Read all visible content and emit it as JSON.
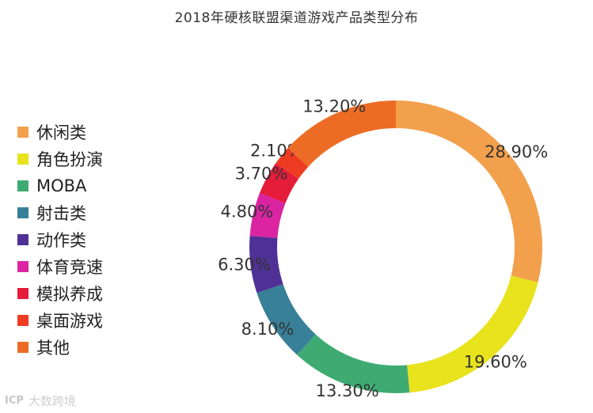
{
  "chart_data": {
    "type": "pie",
    "variant": "donut",
    "title": "2018年硬核联盟渠道游戏产品类型分布",
    "legend_position": "left",
    "slices": [
      {
        "name": "休闲类",
        "value": 28.9,
        "label": "28.90%",
        "color": "#f2a04c"
      },
      {
        "name": "角色扮演",
        "value": 19.6,
        "label": "19.60%",
        "color": "#e8e31c"
      },
      {
        "name": "MOBA",
        "value": 13.3,
        "label": "13.30%",
        "color": "#3fab73"
      },
      {
        "name": "射击类",
        "value": 8.1,
        "label": "8.10%",
        "color": "#387f98"
      },
      {
        "name": "动作类",
        "value": 6.3,
        "label": "6.30%",
        "color": "#4f3196"
      },
      {
        "name": "体育竞速",
        "value": 4.8,
        "label": "4.80%",
        "color": "#da24a2"
      },
      {
        "name": "模拟养成",
        "value": 3.7,
        "label": "3.70%",
        "color": "#e51c3a"
      },
      {
        "name": "桌面游戏",
        "value": 2.1,
        "label": "2.10%",
        "color": "#ee3c22"
      },
      {
        "name": "其他",
        "value": 13.2,
        "label": "13.20%",
        "color": "#ec6c26"
      }
    ]
  },
  "watermark": {
    "logo": "ICP",
    "text": "大数跨境"
  }
}
